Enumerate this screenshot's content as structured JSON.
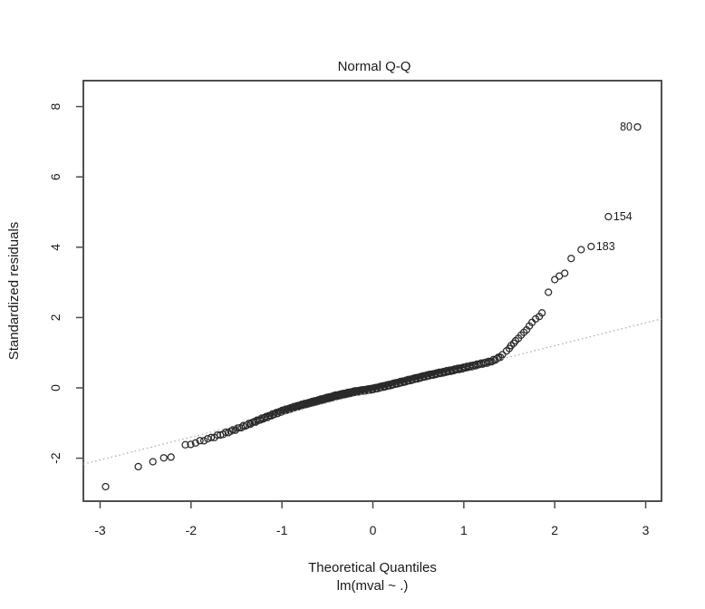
{
  "figure": {
    "title": "Normal Q-Q",
    "xlabel": "Theoretical Quantiles",
    "sublabel": "lm(mval ~ .)",
    "ylabel": "Standardized residuals"
  },
  "chart_data": {
    "type": "scatter",
    "title": "Normal Q-Q",
    "xlabel": "Theoretical Quantiles",
    "ylabel": "Standardized residuals",
    "call_label": "lm(mval ~ .)",
    "xlim": [
      -3.184,
      3.174
    ],
    "ylim": [
      -3.222,
      8.737
    ],
    "x_ticks": [
      -3,
      -2,
      -1,
      0,
      1,
      2,
      3
    ],
    "y_ticks": [
      -2,
      0,
      2,
      4,
      6,
      8
    ],
    "grid": false,
    "legend": null,
    "marker": {
      "shape": "open-circle",
      "radius_px": 3.5,
      "color": "#2a2a2a"
    },
    "reference_line": {
      "style": "dotted",
      "slope": 0.65,
      "intercept": -0.1,
      "color": "#a8a8a8"
    },
    "points_lower_tail": [
      [
        -2.94,
        -2.81
      ],
      [
        -2.58,
        -2.24
      ],
      [
        -2.42,
        -2.1
      ],
      [
        -2.3,
        -1.99
      ],
      [
        -2.22,
        -1.97
      ]
    ],
    "band": {
      "description": "dense overlapping points along the reference line",
      "n_points": 330,
      "q_range": [
        -2.12,
        1.44
      ],
      "jitter": 0.022,
      "keypoints": [
        [
          -2.12,
          -1.68
        ],
        [
          -1.95,
          -1.56
        ],
        [
          -1.8,
          -1.44
        ],
        [
          -1.6,
          -1.27
        ],
        [
          -1.4,
          -1.07
        ],
        [
          -1.2,
          -0.86
        ],
        [
          -1.0,
          -0.66
        ],
        [
          -0.8,
          -0.5
        ],
        [
          -0.6,
          -0.36
        ],
        [
          -0.4,
          -0.22
        ],
        [
          -0.2,
          -0.11
        ],
        [
          0.0,
          -0.03
        ],
        [
          0.2,
          0.09
        ],
        [
          0.4,
          0.22
        ],
        [
          0.6,
          0.35
        ],
        [
          0.8,
          0.46
        ],
        [
          1.0,
          0.57
        ],
        [
          1.15,
          0.66
        ],
        [
          1.3,
          0.75
        ],
        [
          1.38,
          0.85
        ],
        [
          1.44,
          0.96
        ]
      ]
    },
    "points_upper_tail": [
      [
        1.47,
        1.05
      ],
      [
        1.5,
        1.12
      ],
      [
        1.52,
        1.2
      ],
      [
        1.55,
        1.27
      ],
      [
        1.57,
        1.34
      ],
      [
        1.6,
        1.41
      ],
      [
        1.63,
        1.5
      ],
      [
        1.66,
        1.58
      ],
      [
        1.69,
        1.65
      ],
      [
        1.72,
        1.76
      ],
      [
        1.75,
        1.86
      ],
      [
        1.79,
        1.96
      ],
      [
        1.83,
        2.03
      ],
      [
        1.86,
        2.13
      ],
      [
        1.93,
        2.72
      ],
      [
        2.0,
        3.08
      ],
      [
        2.05,
        3.18
      ],
      [
        2.11,
        3.26
      ],
      [
        2.18,
        3.68
      ],
      [
        2.29,
        3.93
      ]
    ],
    "labeled_outliers": [
      {
        "label": "183",
        "q": 2.4,
        "r": 4.02,
        "side": "right"
      },
      {
        "label": "154",
        "q": 2.59,
        "r": 4.87,
        "side": "right"
      },
      {
        "label": "80",
        "q": 2.91,
        "r": 7.42,
        "side": "left"
      }
    ],
    "colors": {
      "foreground": "#1a1a1a",
      "box_border": "#3c3c3c",
      "tick": "#4a4a4a",
      "background": "#ffffff"
    }
  }
}
